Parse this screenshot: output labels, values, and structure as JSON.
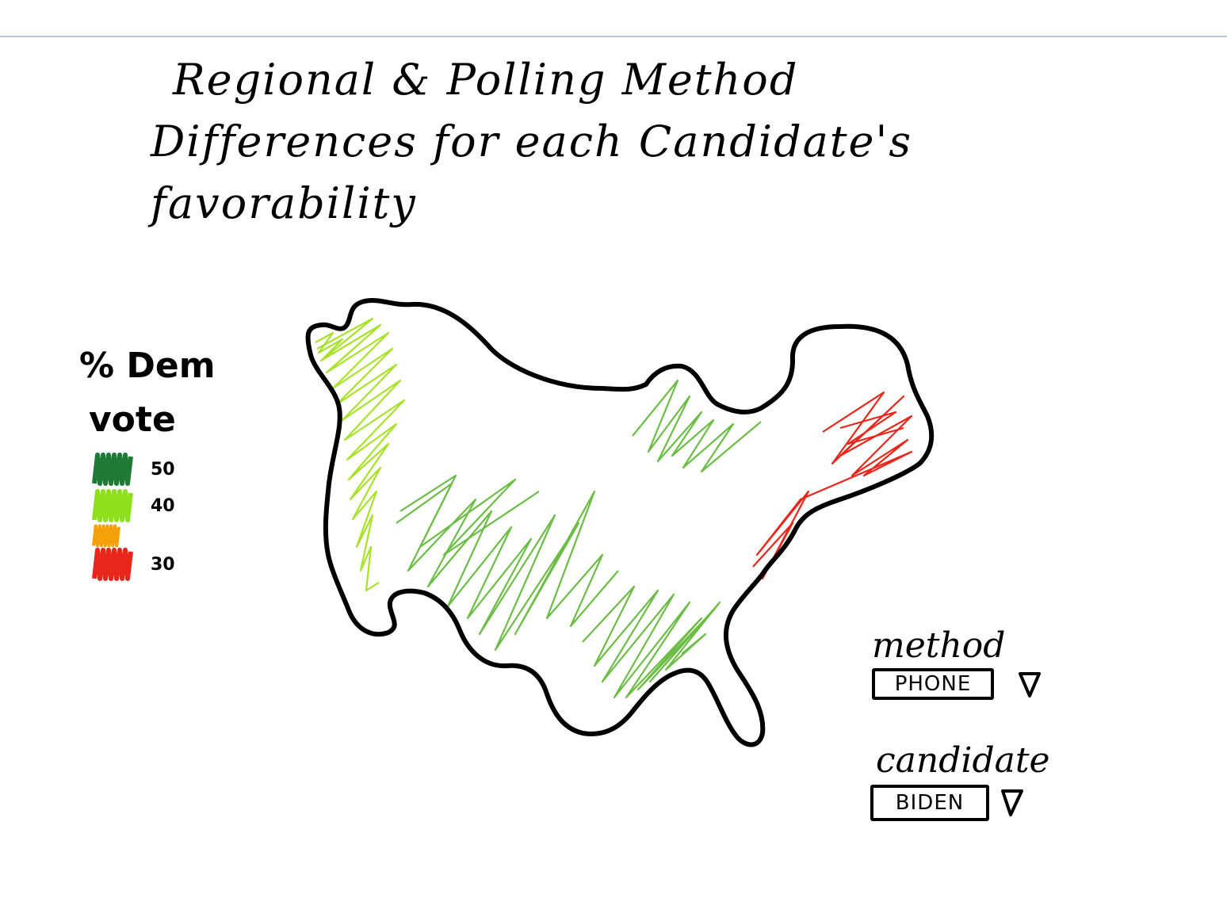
{
  "title": {
    "line1": "Regional & Polling Method",
    "line2": "Differences for each Candidate's",
    "line3": "favorability"
  },
  "legend": {
    "title_line1": "% Dem",
    "title_line2": "vote",
    "items": [
      {
        "label": "50",
        "color": "#1f7a33"
      },
      {
        "label": "40",
        "color": "#8fe01c"
      },
      {
        "label": "",
        "color": "#f5a007"
      },
      {
        "label": "30",
        "color": "#e8261a"
      }
    ]
  },
  "map": {
    "outline_color": "#000000",
    "regions": [
      {
        "name": "west-coast",
        "color": "#a8e22a"
      },
      {
        "name": "midwest",
        "color": "#6cbd45"
      },
      {
        "name": "southwest",
        "color": "#6cbd45"
      },
      {
        "name": "south",
        "color": "#6cbd45"
      },
      {
        "name": "northeast",
        "color": "#e8261a"
      }
    ]
  },
  "controls": {
    "method_label": "method",
    "method_value": "PHONE",
    "candidate_label": "candidate",
    "candidate_value": "BIDEN",
    "caret_icon": "triangle-down-icon"
  }
}
